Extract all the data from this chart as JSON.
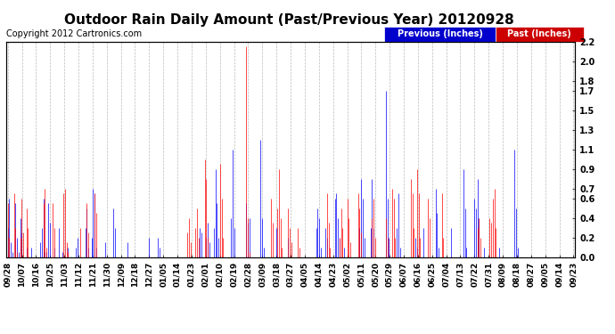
{
  "title": "Outdoor Rain Daily Amount (Past/Previous Year) 20120928",
  "copyright": "Copyright 2012 Cartronics.com",
  "yticks": [
    0.0,
    0.2,
    0.4,
    0.6,
    0.7,
    0.9,
    1.1,
    1.3,
    1.5,
    1.7,
    1.8,
    2.0,
    2.2
  ],
  "ymax": 2.2,
  "ymin": 0.0,
  "legend_labels": [
    "Previous (Inches)",
    "Past (Inches)"
  ],
  "legend_bg_colors": [
    "#0000cc",
    "#cc0000"
  ],
  "bg_color": "#ffffff",
  "plot_bg_color": "#ffffff",
  "grid_color": "#bbbbbb",
  "title_fontsize": 11,
  "copyright_fontsize": 7,
  "tick_fontsize": 7,
  "n_days": 366,
  "x_label_dates": [
    "09/28",
    "10/07",
    "10/16",
    "10/25",
    "11/03",
    "11/12",
    "11/21",
    "11/30",
    "12/09",
    "12/18",
    "12/27",
    "01/05",
    "01/14",
    "01/23",
    "02/01",
    "02/10",
    "02/19",
    "02/28",
    "03/09",
    "03/18",
    "03/27",
    "04/05",
    "04/14",
    "04/23",
    "05/02",
    "05/11",
    "05/20",
    "05/29",
    "06/07",
    "06/16",
    "06/25",
    "07/04",
    "07/13",
    "07/22",
    "07/31",
    "08/09",
    "08/18",
    "08/27",
    "09/05",
    "09/14",
    "09/23"
  ],
  "prev_rain": [
    0.3,
    0.6,
    0.15,
    0.05,
    0.0,
    0.55,
    0.2,
    0.05,
    0.4,
    0.25,
    0.0,
    0.0,
    0.1,
    0.0,
    0.0,
    0.1,
    0.0,
    0.0,
    0.0,
    0.0,
    0.0,
    0.15,
    0.3,
    0.6,
    0.05,
    0.05,
    0.55,
    0.35,
    0.0,
    0.0,
    0.1,
    0.0,
    0.0,
    0.3,
    0.0,
    0.05,
    0.0,
    0.0,
    0.0,
    0.1,
    0.0,
    0.0,
    0.0,
    0.0,
    0.1,
    0.2,
    0.0,
    0.0,
    0.0,
    0.0,
    0.3,
    0.5,
    0.1,
    0.0,
    0.2,
    0.7,
    0.65,
    0.1,
    0.0,
    0.0,
    0.0,
    0.0,
    0.0,
    0.15,
    0.0,
    0.0,
    0.0,
    0.0,
    0.5,
    0.3,
    0.0,
    0.0,
    0.0,
    0.0,
    0.0,
    0.0,
    0.0,
    0.15,
    0.0,
    0.0,
    0.0,
    0.0,
    0.0,
    0.0,
    0.0,
    0.0,
    0.0,
    0.0,
    0.0,
    0.0,
    0.0,
    0.2,
    0.0,
    0.0,
    0.0,
    0.0,
    0.0,
    0.2,
    0.1,
    0.0,
    0.0,
    0.0,
    0.0,
    0.0,
    0.0,
    0.0,
    0.0,
    0.0,
    0.0,
    0.0,
    0.0,
    0.0,
    0.0,
    0.0,
    0.0,
    0.0,
    0.0,
    0.0,
    0.0,
    0.0,
    0.0,
    0.0,
    0.0,
    0.0,
    0.3,
    0.25,
    0.0,
    0.0,
    0.2,
    0.35,
    0.15,
    0.0,
    0.0,
    0.3,
    0.9,
    0.55,
    0.2,
    0.0,
    0.0,
    0.0,
    0.0,
    0.0,
    0.0,
    0.0,
    0.4,
    1.1,
    0.3,
    0.0,
    0.0,
    0.0,
    0.0,
    0.0,
    0.0,
    0.0,
    0.55,
    0.35,
    0.4,
    0.0,
    0.0,
    0.0,
    0.0,
    0.0,
    0.0,
    1.2,
    0.4,
    0.1,
    0.0,
    0.0,
    0.0,
    0.0,
    0.0,
    0.0,
    0.0,
    0.3,
    0.0,
    0.0,
    0.0,
    0.0,
    0.0,
    0.0,
    0.0,
    0.2,
    0.0,
    0.0,
    0.0,
    0.0,
    0.0,
    0.0,
    0.0,
    0.0,
    0.0,
    0.0,
    0.0,
    0.0,
    0.0,
    0.0,
    0.0,
    0.0,
    0.0,
    0.3,
    0.5,
    0.4,
    0.1,
    0.0,
    0.0,
    0.3,
    0.2,
    0.0,
    0.0,
    0.0,
    0.0,
    0.6,
    0.65,
    0.4,
    0.2,
    0.0,
    0.0,
    0.1,
    0.0,
    0.0,
    0.0,
    0.0,
    0.0,
    0.0,
    0.0,
    0.0,
    0.0,
    0.3,
    0.8,
    0.6,
    0.2,
    0.0,
    0.0,
    0.0,
    0.3,
    0.8,
    0.3,
    0.0,
    0.0,
    0.0,
    0.0,
    0.0,
    0.0,
    0.0,
    1.7,
    0.6,
    0.2,
    0.0,
    0.0,
    0.0,
    0.0,
    0.3,
    0.65,
    0.1,
    0.0,
    0.0,
    0.0,
    0.0,
    0.0,
    0.0,
    0.0,
    0.0,
    0.0,
    0.2,
    0.1,
    0.0,
    0.0,
    0.0,
    0.3,
    0.0,
    0.0,
    0.0,
    0.0,
    0.0,
    0.0,
    0.0,
    0.7,
    0.45,
    0.1,
    0.0,
    0.0,
    0.0,
    0.0,
    0.0,
    0.0,
    0.0,
    0.3,
    0.0,
    0.0,
    0.0,
    0.0,
    0.0,
    0.0,
    0.0,
    0.9,
    0.5,
    0.1,
    0.0,
    0.0,
    0.0,
    0.0,
    0.6,
    0.5,
    0.8,
    0.4,
    0.0,
    0.0,
    0.1,
    0.0,
    0.0,
    0.0,
    0.0,
    0.0,
    0.0,
    0.0,
    0.0,
    0.0,
    0.1,
    0.0,
    0.0,
    0.0,
    0.0,
    0.0,
    0.0,
    0.0,
    0.0,
    0.0,
    1.1,
    0.5,
    0.1,
    0.0,
    0.0,
    0.0,
    0.0,
    0.0
  ],
  "past_rain": [
    0.55,
    0.2,
    0.0,
    0.0,
    0.65,
    0.3,
    0.05,
    0.0,
    0.2,
    0.6,
    0.25,
    0.0,
    0.5,
    0.3,
    0.0,
    0.0,
    0.0,
    0.0,
    0.0,
    0.0,
    0.0,
    0.0,
    0.0,
    0.55,
    0.7,
    0.1,
    0.0,
    0.0,
    0.0,
    0.55,
    0.3,
    0.0,
    0.0,
    0.0,
    0.0,
    0.0,
    0.65,
    0.7,
    0.15,
    0.05,
    0.0,
    0.0,
    0.0,
    0.0,
    0.0,
    0.0,
    0.0,
    0.3,
    0.0,
    0.0,
    0.0,
    0.55,
    0.25,
    0.0,
    0.0,
    0.0,
    0.65,
    0.45,
    0.0,
    0.0,
    0.0,
    0.0,
    0.0,
    0.0,
    0.0,
    0.0,
    0.0,
    0.0,
    0.0,
    0.0,
    0.0,
    0.0,
    0.0,
    0.0,
    0.0,
    0.0,
    0.0,
    0.0,
    0.0,
    0.0,
    0.0,
    0.0,
    0.0,
    0.0,
    0.0,
    0.0,
    0.0,
    0.0,
    0.0,
    0.0,
    0.0,
    0.0,
    0.0,
    0.0,
    0.0,
    0.0,
    0.0,
    0.0,
    0.0,
    0.0,
    0.0,
    0.0,
    0.0,
    0.0,
    0.0,
    0.0,
    0.0,
    0.0,
    0.0,
    0.0,
    0.0,
    0.0,
    0.0,
    0.0,
    0.0,
    0.0,
    0.25,
    0.4,
    0.15,
    0.0,
    0.0,
    0.3,
    0.5,
    0.2,
    0.0,
    0.0,
    0.0,
    1.0,
    0.8,
    0.2,
    0.0,
    0.0,
    0.0,
    0.0,
    0.0,
    0.0,
    0.0,
    0.95,
    0.6,
    0.2,
    0.0,
    0.0,
    0.0,
    0.0,
    0.0,
    0.0,
    0.0,
    0.0,
    0.0,
    0.0,
    0.0,
    0.0,
    0.0,
    0.0,
    2.15,
    0.4,
    0.05,
    0.0,
    0.0,
    0.0,
    0.0,
    0.0,
    0.0,
    0.0,
    0.0,
    0.0,
    0.0,
    0.0,
    0.0,
    0.0,
    0.6,
    0.35,
    0.0,
    0.0,
    0.5,
    0.9,
    0.4,
    0.1,
    0.0,
    0.0,
    0.0,
    0.5,
    0.3,
    0.15,
    0.0,
    0.0,
    0.0,
    0.3,
    0.1,
    0.0,
    0.0,
    0.0,
    0.0,
    0.0,
    0.0,
    0.0,
    0.0,
    0.0,
    0.0,
    0.0,
    0.0,
    0.0,
    0.0,
    0.0,
    0.0,
    0.0,
    0.65,
    0.35,
    0.1,
    0.0,
    0.0,
    0.0,
    0.0,
    0.0,
    0.2,
    0.5,
    0.3,
    0.0,
    0.0,
    0.6,
    0.4,
    0.15,
    0.0,
    0.0,
    0.0,
    0.0,
    0.65,
    0.5,
    0.25,
    0.0,
    0.0,
    0.0,
    0.0,
    0.0,
    0.0,
    0.4,
    0.6,
    0.2,
    0.0,
    0.0,
    0.0,
    0.0,
    0.0,
    0.0,
    0.4,
    0.2,
    0.0,
    0.0,
    0.7,
    0.6,
    0.2,
    0.0,
    0.0,
    0.0,
    0.0,
    0.0,
    0.0,
    0.0,
    0.0,
    0.0,
    0.8,
    0.65,
    0.3,
    0.0,
    0.9,
    0.65,
    0.2,
    0.0,
    0.0,
    0.0,
    0.0,
    0.6,
    0.4,
    0.0,
    0.0,
    0.0,
    0.0,
    0.0,
    0.0,
    0.0,
    0.65,
    0.2,
    0.0,
    0.0,
    0.0,
    0.0,
    0.0,
    0.0,
    0.0,
    0.0,
    0.0,
    0.0,
    0.0,
    0.0,
    0.0,
    0.0,
    0.0,
    0.0,
    0.0,
    0.0,
    0.0,
    0.0,
    0.0,
    0.3,
    0.4,
    0.2,
    0.0,
    0.0,
    0.0,
    0.0,
    0.0,
    0.4,
    0.35,
    0.6,
    0.7,
    0.3,
    0.0,
    0.0,
    0.0,
    0.0,
    0.0,
    0.0,
    0.0,
    0.0,
    0.0,
    0.0,
    0.0,
    0.0
  ]
}
